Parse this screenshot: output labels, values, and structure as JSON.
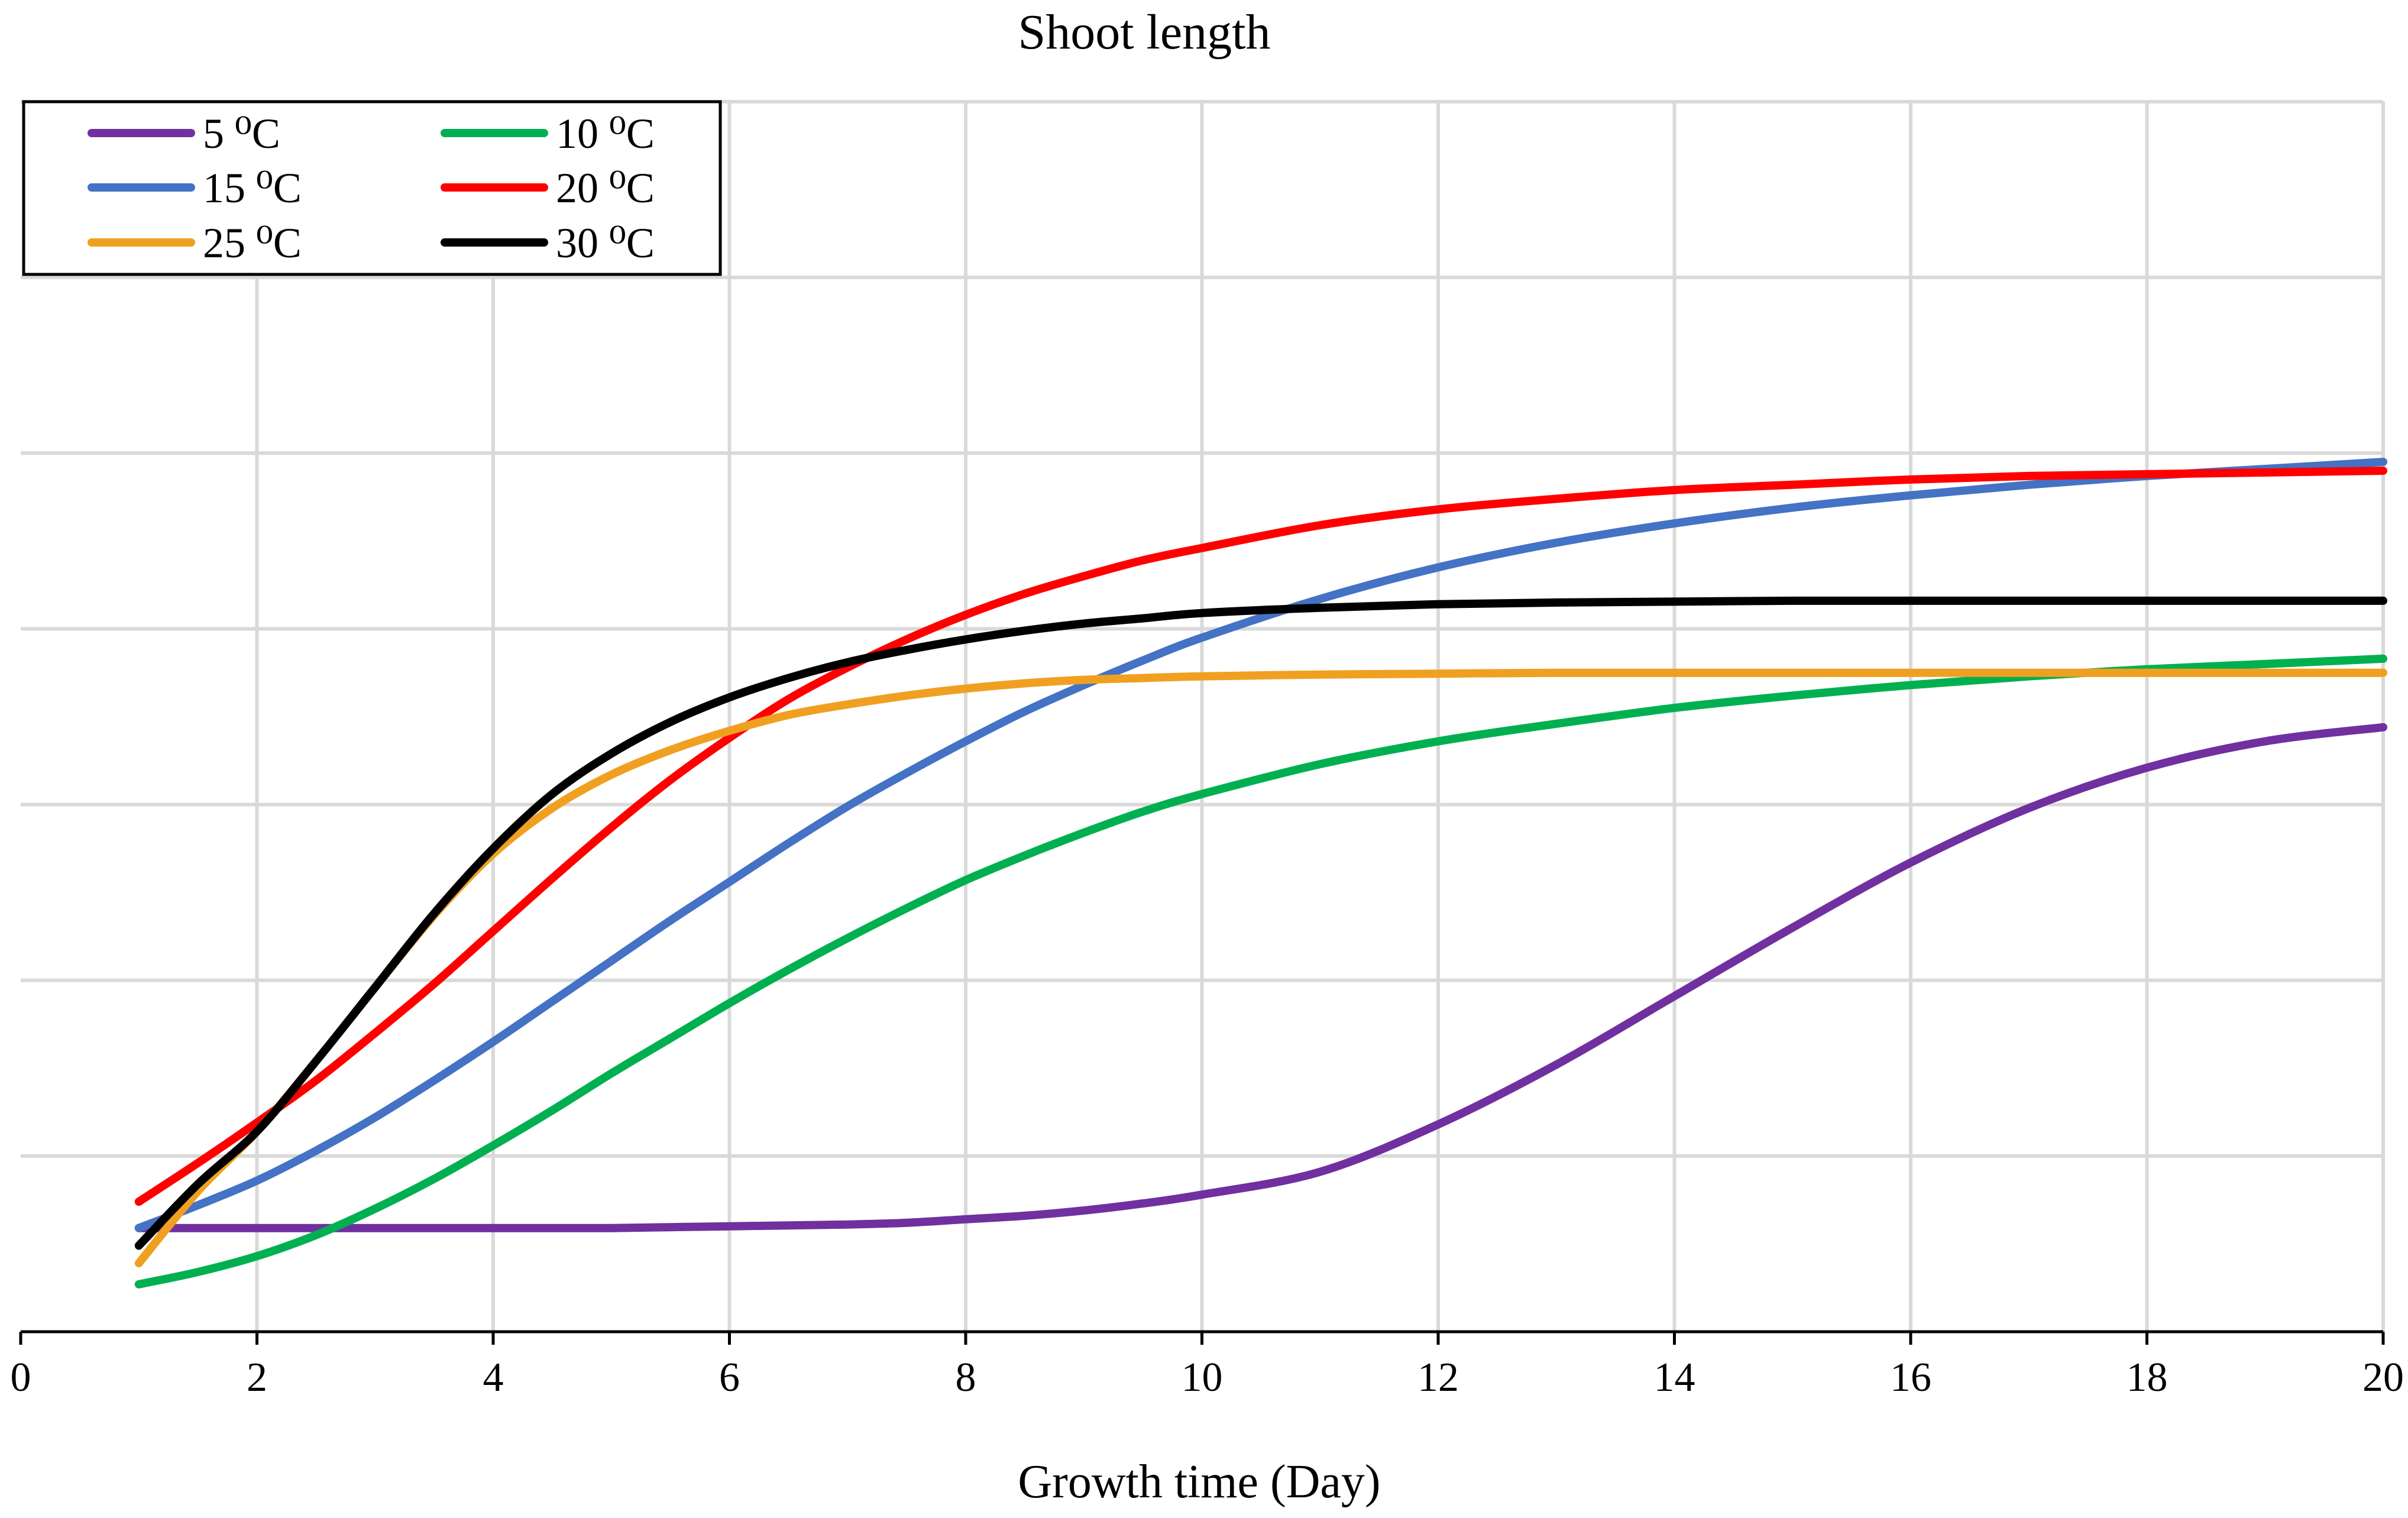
{
  "chart_data": {
    "type": "line",
    "title": "Shoot length",
    "xlabel": "Growth time (Day)",
    "ylabel": "",
    "xlim": [
      0,
      20
    ],
    "ylim": [
      0,
      7
    ],
    "x_ticks": [
      "0",
      "2",
      "4",
      "6",
      "8",
      "10",
      "12",
      "14",
      "16",
      "18",
      "20"
    ],
    "y_ticks_labeled": false,
    "grid": true,
    "legend_position": "top-left",
    "x": [
      1,
      1.5,
      2,
      2.5,
      3,
      3.5,
      4,
      4.5,
      5,
      5.5,
      6,
      6.5,
      7,
      7.5,
      8,
      8.5,
      9,
      9.5,
      10,
      11,
      12,
      13,
      14,
      15,
      16,
      17,
      18,
      19,
      20
    ],
    "series": [
      {
        "name": "5 ⁰C",
        "color": "#7030a0",
        "values": [
          0.59,
          0.59,
          0.59,
          0.59,
          0.59,
          0.59,
          0.59,
          0.59,
          0.59,
          0.595,
          0.6,
          0.605,
          0.61,
          0.62,
          0.64,
          0.66,
          0.69,
          0.73,
          0.78,
          0.91,
          1.18,
          1.52,
          1.91,
          2.3,
          2.67,
          2.98,
          3.21,
          3.36,
          3.44
        ]
      },
      {
        "name": "10 ⁰C",
        "color": "#00b050",
        "values": [
          0.27,
          0.34,
          0.43,
          0.55,
          0.7,
          0.87,
          1.06,
          1.26,
          1.47,
          1.67,
          1.87,
          2.06,
          2.24,
          2.41,
          2.57,
          2.71,
          2.84,
          2.96,
          3.06,
          3.23,
          3.36,
          3.46,
          3.55,
          3.62,
          3.68,
          3.73,
          3.77,
          3.8,
          3.83
        ]
      },
      {
        "name": "15 ⁰C",
        "color": "#4472c4",
        "values": [
          0.59,
          0.72,
          0.86,
          1.03,
          1.22,
          1.43,
          1.65,
          1.88,
          2.11,
          2.34,
          2.56,
          2.78,
          2.99,
          3.18,
          3.36,
          3.53,
          3.68,
          3.82,
          3.95,
          4.17,
          4.35,
          4.49,
          4.6,
          4.69,
          4.76,
          4.82,
          4.87,
          4.91,
          4.95
        ]
      },
      {
        "name": "20 ⁰C",
        "color": "#ff0000",
        "values": [
          0.74,
          0.96,
          1.19,
          1.43,
          1.7,
          1.98,
          2.28,
          2.58,
          2.87,
          3.14,
          3.38,
          3.6,
          3.78,
          3.94,
          4.08,
          4.2,
          4.3,
          4.39,
          4.46,
          4.59,
          4.68,
          4.74,
          4.79,
          4.82,
          4.85,
          4.87,
          4.88,
          4.89,
          4.9
        ]
      },
      {
        "name": "25 ⁰C",
        "color": "#f0a020",
        "values": [
          0.39,
          0.8,
          1.14,
          1.54,
          1.96,
          2.37,
          2.72,
          2.98,
          3.17,
          3.31,
          3.42,
          3.51,
          3.57,
          3.62,
          3.66,
          3.69,
          3.71,
          3.72,
          3.73,
          3.74,
          3.745,
          3.75,
          3.75,
          3.75,
          3.75,
          3.75,
          3.75,
          3.75,
          3.75
        ]
      },
      {
        "name": "30 ⁰C",
        "color": "#000000",
        "values": [
          0.49,
          0.84,
          1.14,
          1.54,
          1.96,
          2.38,
          2.75,
          3.06,
          3.29,
          3.47,
          3.61,
          3.72,
          3.81,
          3.88,
          3.94,
          3.99,
          4.03,
          4.06,
          4.09,
          4.12,
          4.14,
          4.15,
          4.155,
          4.16,
          4.16,
          4.16,
          4.16,
          4.16,
          4.16
        ]
      }
    ]
  }
}
